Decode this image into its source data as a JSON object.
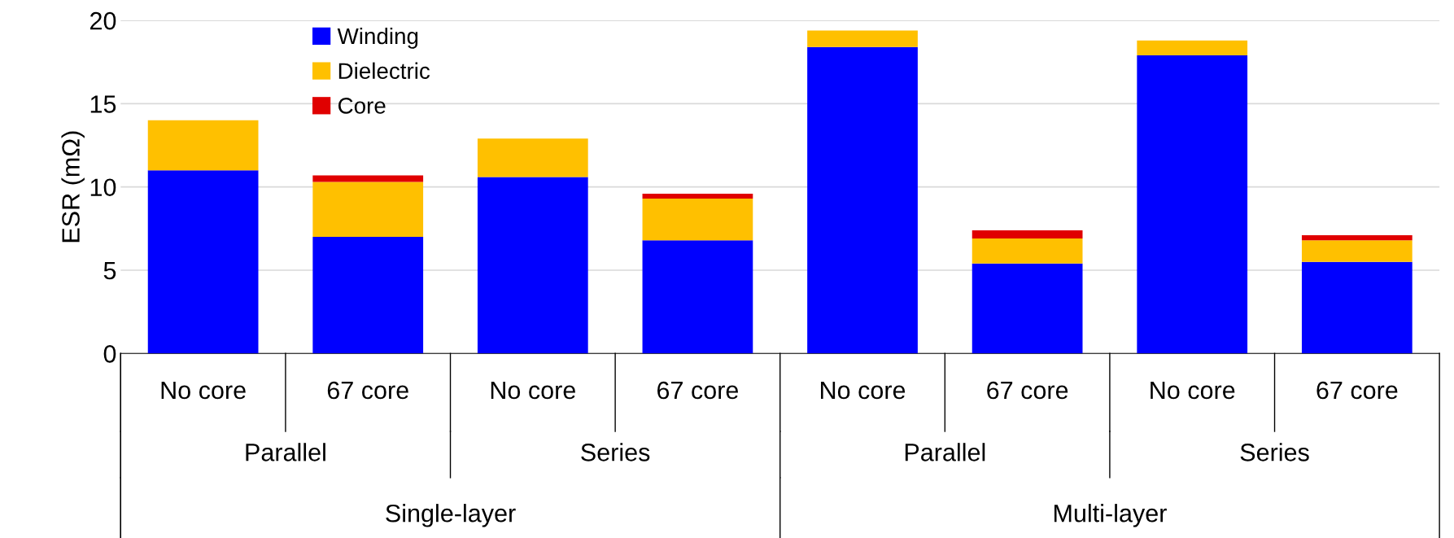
{
  "chart_data": {
    "type": "bar",
    "stacked": true,
    "ylabel": "ESR (mΩ)",
    "categories": [
      "No core",
      "67 core",
      "No core",
      "67 core",
      "No core",
      "67 core",
      "No core",
      "67 core"
    ],
    "series": [
      {
        "name": "Winding",
        "color": "#0000ff",
        "values": [
          11.0,
          7.0,
          10.6,
          6.8,
          18.4,
          5.4,
          17.9,
          5.5
        ]
      },
      {
        "name": "Dielectric",
        "color": "#ffc000",
        "values": [
          3.0,
          3.3,
          2.3,
          2.5,
          1.0,
          1.5,
          0.9,
          1.3
        ]
      },
      {
        "name": "Core",
        "color": "#e00000",
        "values": [
          null,
          0.4,
          null,
          0.3,
          null,
          0.5,
          null,
          0.3
        ]
      }
    ],
    "annotations": [
      "Parallel",
      "Series",
      "Parallel",
      "Series",
      "Single-layer",
      "Multi-layer"
    ],
    "ylim": [
      0,
      20
    ],
    "yticks": [
      0,
      5,
      10,
      15,
      20
    ],
    "grid": "y",
    "legend": "top left"
  }
}
